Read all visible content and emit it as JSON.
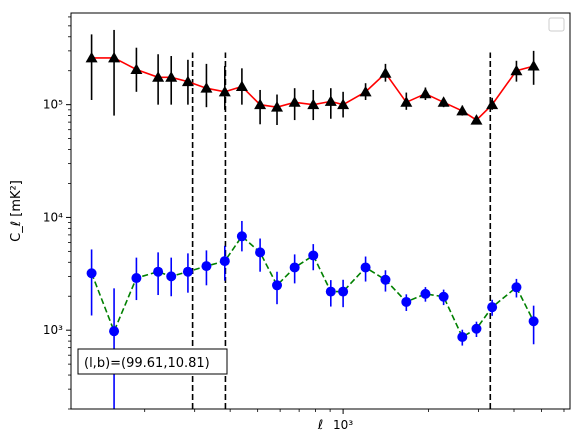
{
  "chart_data": {
    "type": "scatter",
    "xscale": "log",
    "yscale": "log",
    "xlim": [
      110,
      6300
    ],
    "ylim": [
      200,
      650000
    ],
    "xlabel": "ℓ",
    "ylabel": "C_ℓ  [mK²]",
    "xticks": [
      {
        "value": 1000,
        "label": "10³"
      }
    ],
    "yticks": [
      {
        "value": 1000,
        "label": "10³"
      },
      {
        "value": 10000,
        "label": "10⁴"
      },
      {
        "value": 100000,
        "label": "10⁵"
      }
    ],
    "annotation": "(l,b)=(99.61,10.81)",
    "legend": {
      "position": "top-right",
      "entries": []
    },
    "vlines": [
      {
        "x": 295,
        "ymin": 200,
        "ymax": 290000,
        "style": "dashed",
        "color": "#000000"
      },
      {
        "x": 385,
        "ymin": 200,
        "ymax": 290000,
        "style": "dashed",
        "color": "#000000"
      },
      {
        "x": 3300,
        "ymin": 200,
        "ymax": 290000,
        "style": "dashed",
        "color": "#000000"
      }
    ],
    "series": [
      {
        "marker": "triangle",
        "marker_color": "#000000",
        "line_color": "#ff0000",
        "line_style": "solid",
        "x": [
          130,
          156,
          187,
          223,
          248,
          284,
          330,
          383,
          440,
          510,
          585,
          675,
          785,
          905,
          1000,
          1200,
          1410,
          1670,
          1950,
          2260,
          2630,
          2950,
          3350,
          4080,
          4690
        ],
        "y": [
          260000,
          260000,
          205000,
          175000,
          175000,
          160000,
          140000,
          130000,
          145000,
          100000,
          95000,
          105000,
          100000,
          107000,
          100000,
          130000,
          190000,
          105000,
          125000,
          105000,
          88000,
          73000,
          100000,
          200000,
          220000
        ],
        "err_low": [
          110000,
          80000,
          130000,
          100000,
          100000,
          100000,
          95000,
          90000,
          100000,
          67000,
          66000,
          73000,
          73000,
          75000,
          77000,
          110000,
          160000,
          90000,
          110000,
          95000,
          80000,
          68000,
          90000,
          160000,
          150000
        ],
        "err_high": [
          420000,
          460000,
          320000,
          280000,
          270000,
          250000,
          230000,
          220000,
          210000,
          135000,
          123000,
          140000,
          135000,
          140000,
          130000,
          155000,
          230000,
          128000,
          142000,
          115000,
          98000,
          80000,
          115000,
          245000,
          300000
        ]
      },
      {
        "marker": "circle",
        "marker_color": "#0000ff",
        "line_color": "#008000",
        "line_style": "dashed",
        "x": [
          130,
          156,
          187,
          223,
          248,
          284,
          330,
          383,
          440,
          510,
          585,
          675,
          785,
          905,
          1000,
          1200,
          1410,
          1670,
          1950,
          2260,
          2630,
          2950,
          3350,
          4080,
          4690
        ],
        "y": [
          3200,
          980,
          2900,
          3300,
          3000,
          3300,
          3700,
          4100,
          6800,
          4900,
          2500,
          3600,
          4600,
          2200,
          2200,
          3600,
          2800,
          1780,
          2100,
          1980,
          870,
          1030,
          1600,
          2400,
          1200
        ],
        "err_low": [
          1350,
          200,
          1850,
          2050,
          2000,
          2150,
          2500,
          2750,
          5000,
          3300,
          1700,
          2600,
          3400,
          1620,
          1600,
          2700,
          2200,
          1480,
          1790,
          1670,
          730,
          870,
          1340,
          1950,
          750
        ],
        "err_high": [
          5200,
          2350,
          4400,
          4900,
          4400,
          4800,
          5100,
          5600,
          9300,
          6500,
          3300,
          4700,
          5800,
          2780,
          2800,
          4500,
          3400,
          2080,
          2410,
          2290,
          1010,
          1190,
          1860,
          2850,
          1650
        ]
      }
    ]
  }
}
